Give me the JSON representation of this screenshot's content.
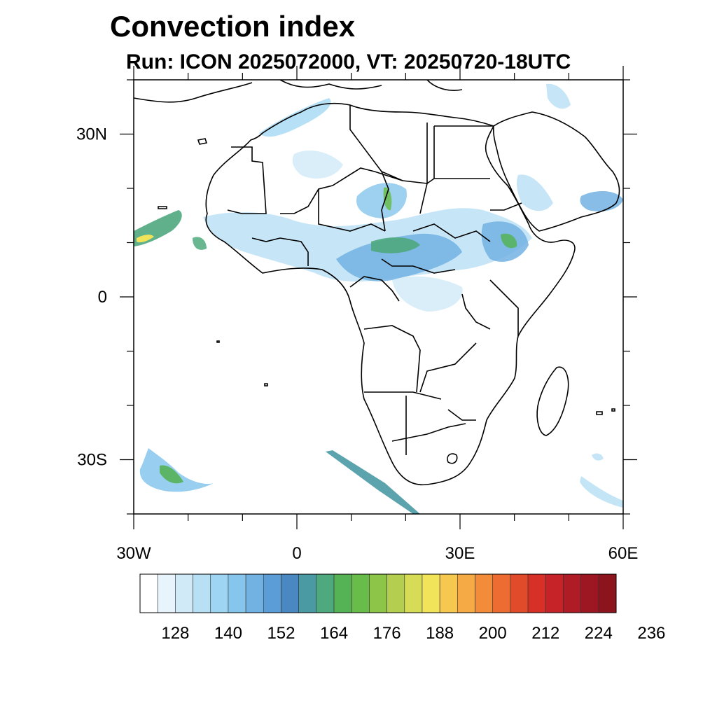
{
  "title": "Convection index",
  "subtitle": "Run: ICON 2025072000,  VT: 20250720-18UTC",
  "map": {
    "extent": {
      "lon_min": -30,
      "lon_max": 60,
      "lat_min": -40,
      "lat_max": 40
    },
    "lat_ticks": [
      {
        "value": 30,
        "label": "30N"
      },
      {
        "value": 0,
        "label": "0"
      },
      {
        "value": -30,
        "label": "30S"
      }
    ],
    "lon_ticks": [
      {
        "value": -30,
        "label": "30W"
      },
      {
        "value": 0,
        "label": "0"
      },
      {
        "value": 30,
        "label": "30E"
      },
      {
        "value": 60,
        "label": "60E"
      }
    ]
  },
  "colorbar": {
    "colors": [
      "#ffffff",
      "#e8f4fb",
      "#d0eaf8",
      "#b8e0f5",
      "#9ed5f3",
      "#86c6ec",
      "#72b2e3",
      "#5b9dd6",
      "#4a88c2",
      "#4a9aa4",
      "#4fa97e",
      "#55b356",
      "#67bc4a",
      "#8dc549",
      "#b4cf50",
      "#d6dc56",
      "#f1e35a",
      "#f6c850",
      "#f5aa45",
      "#f28c3b",
      "#ec6c31",
      "#e14b2a",
      "#d63027",
      "#c52328",
      "#b01c26",
      "#9c1722",
      "#8b141d"
    ],
    "labels": [
      "128",
      "140",
      "152",
      "164",
      "176",
      "188",
      "200",
      "212",
      "224",
      "236"
    ]
  }
}
